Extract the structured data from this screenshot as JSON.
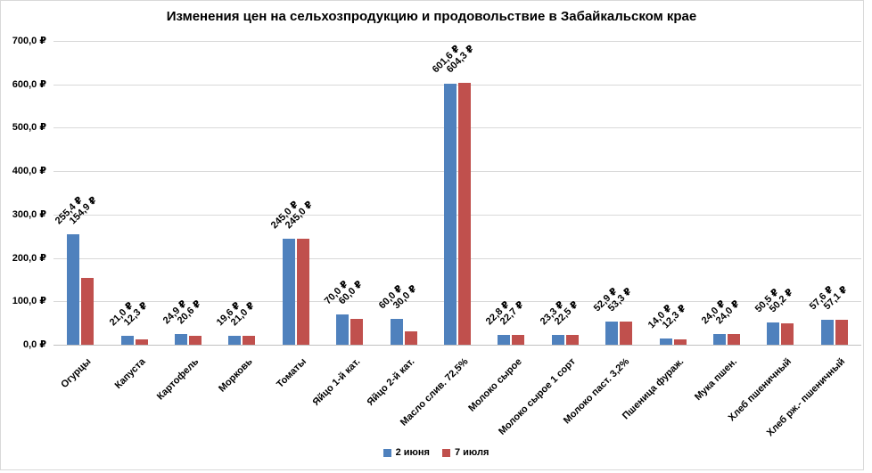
{
  "chart_data": {
    "type": "bar",
    "title": "Изменения цен на сельхозпродукцию и продовольствие в Забайкальском крае",
    "categories": [
      "Огурцы",
      "Капуста",
      "Картофель",
      "Морковь",
      "Томаты",
      "Яйцо 1-й кат.",
      "Яйцо 2-й кат.",
      "Масло слив. 72,5%",
      "Молоко сырое",
      "Молоко сырое 1 сорт",
      "Молоко паст. 3,2%",
      "Пшеница фураж.",
      "Мука пшен.",
      "Хлеб пшеничный",
      "Хлеб рж.- пшеничный"
    ],
    "series": [
      {
        "name": "2 июня",
        "color": "#4F81BD",
        "values": [
          255.4,
          21.0,
          24.9,
          19.6,
          245.0,
          70.0,
          60.0,
          601.6,
          22.8,
          23.3,
          52.9,
          14.0,
          24.0,
          50.5,
          57.6
        ]
      },
      {
        "name": "7 июля",
        "color": "#C0504D",
        "values": [
          154.9,
          12.3,
          20.6,
          21.0,
          245.0,
          60.0,
          30.0,
          604.3,
          22.7,
          22.5,
          53.3,
          12.3,
          24.0,
          50.2,
          57.1
        ]
      }
    ],
    "ylim": [
      0,
      700
    ],
    "ytick_step": 100,
    "ytick_labels": [
      "0,0 ₽",
      "100,0 ₽",
      "200,0 ₽",
      "300,0 ₽",
      "400,0 ₽",
      "500,0 ₽",
      "600,0 ₽",
      "700,0 ₽"
    ],
    "value_suffix": " ₽",
    "decimal_separator": ",",
    "grid": true,
    "legend_position": "bottom",
    "gridline_color": "#D9D9D9",
    "axis_line_color": "#C0C0C0"
  }
}
